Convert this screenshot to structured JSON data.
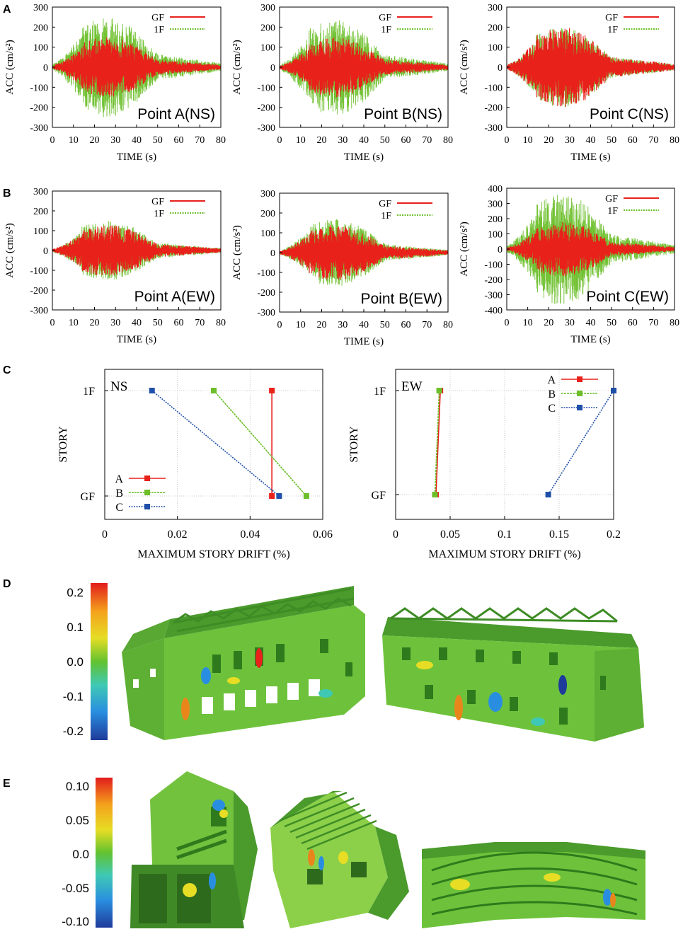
{
  "panel_letters": {
    "A": "A",
    "B": "B",
    "C": "C",
    "D": "D",
    "E": "E"
  },
  "colors": {
    "gf": "#e8211b",
    "f1": "#6cbf2a",
    "a": "#e8211b",
    "b": "#6cbf2a",
    "c": "#1f4fa8",
    "building": "#4fa732"
  },
  "chart_data": [
    {
      "type": "line",
      "panel": "A",
      "title": "Point A(NS)",
      "xlabel": "TIME (s)",
      "ylabel": "ACC (cm/s²)",
      "xlim": [
        0,
        80
      ],
      "ylim": [
        -300,
        300
      ],
      "xticks": [
        "0",
        "10",
        "20",
        "30",
        "40",
        "50",
        "60",
        "70",
        "80"
      ],
      "yticks": [
        "300",
        "200",
        "100",
        "0",
        "-100",
        "-200",
        "-300"
      ],
      "series": [
        {
          "name": "GF",
          "peak": 150,
          "color": "#e8211b"
        },
        {
          "name": "1F",
          "peak": 250,
          "color": "#6cbf2a"
        }
      ]
    },
    {
      "type": "line",
      "panel": "A",
      "title": "Point B(NS)",
      "xlabel": "TIME (s)",
      "ylabel": "ACC (cm/s²)",
      "xlim": [
        0,
        80
      ],
      "ylim": [
        -300,
        300
      ],
      "xticks": [
        "0",
        "10",
        "20",
        "30",
        "40",
        "50",
        "60",
        "70",
        "80"
      ],
      "yticks": [
        "300",
        "200",
        "100",
        "0",
        "-100",
        "-200",
        "-300"
      ],
      "series": [
        {
          "name": "GF",
          "peak": 150,
          "color": "#e8211b"
        },
        {
          "name": "1F",
          "peak": 240,
          "color": "#6cbf2a"
        }
      ]
    },
    {
      "type": "line",
      "panel": "A",
      "title": "Point C(NS)",
      "xlabel": "TIME (s)",
      "ylabel": "ACC (cm/s²)",
      "xlim": [
        0,
        80
      ],
      "ylim": [
        -300,
        300
      ],
      "xticks": [
        "0",
        "10",
        "20",
        "30",
        "40",
        "50",
        "60",
        "70",
        "80"
      ],
      "yticks": [
        "300",
        "200",
        "100",
        "0",
        "-100",
        "-200",
        "-300"
      ],
      "series": [
        {
          "name": "GF",
          "peak": 200,
          "color": "#e8211b"
        },
        {
          "name": "1F",
          "peak": 200,
          "color": "#6cbf2a"
        }
      ]
    },
    {
      "type": "line",
      "panel": "B",
      "title": "Point A(EW)",
      "xlabel": "TIME (s)",
      "ylabel": "ACC (cm/s²)",
      "xlim": [
        0,
        80
      ],
      "ylim": [
        -300,
        300
      ],
      "xticks": [
        "0",
        "10",
        "20",
        "30",
        "40",
        "50",
        "60",
        "70",
        "80"
      ],
      "yticks": [
        "300",
        "200",
        "100",
        "0",
        "-100",
        "-200",
        "-300"
      ],
      "series": [
        {
          "name": "GF",
          "peak": 130,
          "color": "#e8211b"
        },
        {
          "name": "1F",
          "peak": 150,
          "color": "#6cbf2a"
        }
      ]
    },
    {
      "type": "line",
      "panel": "B",
      "title": "Point B(EW)",
      "xlabel": "TIME (s)",
      "ylabel": "ACC (cm/s²)",
      "xlim": [
        0,
        80
      ],
      "ylim": [
        -300,
        300
      ],
      "xticks": [
        "0",
        "10",
        "20",
        "30",
        "40",
        "50",
        "60",
        "70",
        "80"
      ],
      "yticks": [
        "300",
        "200",
        "100",
        "0",
        "-100",
        "-200",
        "-300"
      ],
      "series": [
        {
          "name": "GF",
          "peak": 140,
          "color": "#e8211b"
        },
        {
          "name": "1F",
          "peak": 170,
          "color": "#6cbf2a"
        }
      ]
    },
    {
      "type": "line",
      "panel": "B",
      "title": "Point C(EW)",
      "xlabel": "TIME (s)",
      "ylabel": "ACC (cm/s²)",
      "xlim": [
        0,
        80
      ],
      "ylim": [
        -400,
        400
      ],
      "xticks": [
        "0",
        "10",
        "20",
        "30",
        "40",
        "50",
        "60",
        "70",
        "80"
      ],
      "yticks": [
        "400",
        "300",
        "200",
        "100",
        "0",
        "-100",
        "-200",
        "-300",
        "-400"
      ],
      "series": [
        {
          "name": "GF",
          "peak": 180,
          "color": "#e8211b"
        },
        {
          "name": "1F",
          "peak": 370,
          "color": "#6cbf2a"
        }
      ]
    },
    {
      "type": "line",
      "panel": "C",
      "title": "NS",
      "xlabel": "MAXIMUM STORY DRIFT (%)",
      "ylabel": "STORY",
      "xlim": [
        0,
        0.06
      ],
      "xticks": [
        "0",
        "0.02",
        "0.04",
        "0.06"
      ],
      "yticks": [
        "1F",
        "GF"
      ],
      "categories": [
        "GF",
        "1F"
      ],
      "series": [
        {
          "name": "A",
          "values": [
            0.046,
            0.046
          ],
          "color": "#e8211b"
        },
        {
          "name": "B",
          "values": [
            0.0555,
            0.03
          ],
          "color": "#6cbf2a"
        },
        {
          "name": "C",
          "values": [
            0.048,
            0.013
          ],
          "color": "#1f4fa8"
        }
      ]
    },
    {
      "type": "line",
      "panel": "C",
      "title": "EW",
      "xlabel": "MAXIMUM STORY DRIFT (%)",
      "ylabel": "STORY",
      "xlim": [
        0,
        0.2
      ],
      "xticks": [
        "0",
        "0.05",
        "0.1",
        "0.15",
        "0.2"
      ],
      "yticks": [
        "1F",
        "GF"
      ],
      "categories": [
        "GF",
        "1F"
      ],
      "series": [
        {
          "name": "A",
          "values": [
            0.037,
            0.041
          ],
          "color": "#e8211b"
        },
        {
          "name": "B",
          "values": [
            0.036,
            0.04
          ],
          "color": "#6cbf2a"
        },
        {
          "name": "C",
          "values": [
            0.14,
            0.2
          ],
          "color": "#1f4fa8"
        }
      ]
    }
  ],
  "colorbar_d": {
    "ticks": [
      "0.2",
      "0.1",
      "0.0",
      "-0.1",
      "-0.2"
    ]
  },
  "colorbar_e": {
    "ticks": [
      "0.10",
      "0.05",
      "0.0",
      "-0.05",
      "-0.10"
    ]
  }
}
